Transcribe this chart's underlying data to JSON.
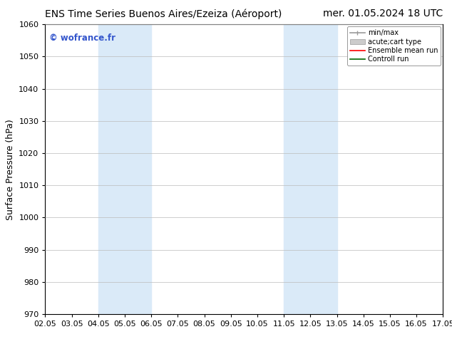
{
  "title_left": "ENS Time Series Buenos Aires/Ezeiza (Aéroport)",
  "title_right": "mer. 01.05.2024 18 UTC",
  "ylabel": "Surface Pressure (hPa)",
  "watermark": "© wofrance.fr",
  "watermark_color": "#3355cc",
  "ylim": [
    970,
    1060
  ],
  "yticks": [
    970,
    980,
    990,
    1000,
    1010,
    1020,
    1030,
    1040,
    1050,
    1060
  ],
  "xtick_labels": [
    "02.05",
    "03.05",
    "04.05",
    "05.05",
    "06.05",
    "07.05",
    "08.05",
    "09.05",
    "10.05",
    "11.05",
    "12.05",
    "13.05",
    "14.05",
    "15.05",
    "16.05",
    "17.05"
  ],
  "xlim": [
    0,
    15
  ],
  "shaded_bands": [
    {
      "xmin": 2,
      "xmax": 4,
      "color": "#daeaf8"
    },
    {
      "xmin": 9,
      "xmax": 11,
      "color": "#daeaf8"
    }
  ],
  "background_color": "#ffffff",
  "grid_color": "#bbbbbb",
  "title_fontsize": 10,
  "tick_fontsize": 8,
  "ylabel_fontsize": 9
}
